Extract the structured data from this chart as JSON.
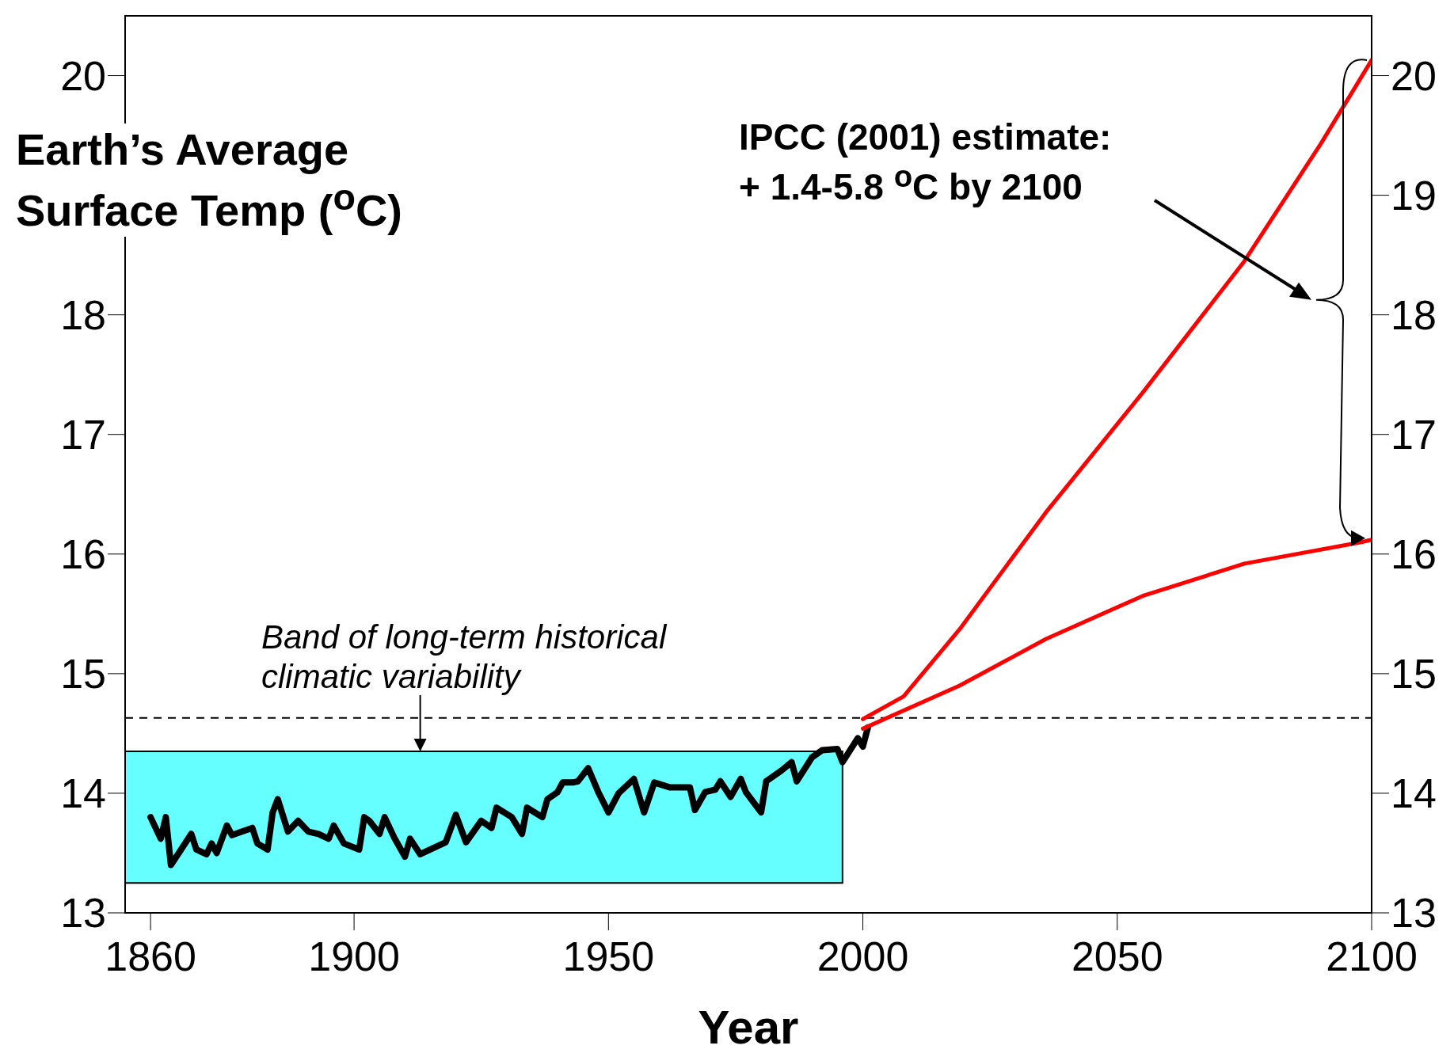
{
  "chart_data": {
    "type": "line",
    "xlabel": "Year",
    "ylabel": "Earth’s Average\nSurface Temp ($^{o}$C)",
    "xlim": [
      1855,
      2100
    ],
    "xticks": [
      1860,
      1900,
      1950,
      2000,
      2050,
      2100
    ],
    "ylim": [
      13,
      20.5
    ],
    "yticks": [
      13,
      14,
      15,
      16,
      17,
      18,
      20
    ],
    "y2lim": [
      13,
      20.5
    ],
    "y2ticks": [
      13,
      14,
      15,
      16,
      17,
      18,
      19,
      20
    ],
    "grid": false,
    "legend": false,
    "marker": "none",
    "line_style": "solid",
    "series": [
      {
        "color": "#000000",
        "x": [
          1860,
          1862,
          1863,
          1864,
          1866,
          1868,
          1869,
          1871,
          1872,
          1873,
          1875,
          1876,
          1878,
          1880,
          1881,
          1883,
          1884,
          1885,
          1887,
          1889,
          1891,
          1893,
          1895,
          1896,
          1898,
          1901,
          1902,
          1903,
          1905,
          1906,
          1908,
          1910,
          1911,
          1913,
          1918,
          1920,
          1922,
          1925,
          1927,
          1928,
          1931,
          1933,
          1934,
          1937,
          1938,
          1940,
          1941,
          1943,
          1944,
          1946,
          1948,
          1950,
          1952,
          1955,
          1957,
          1959,
          1962,
          1966,
          1967,
          1969,
          1971,
          1972,
          1974,
          1976,
          1977,
          1980,
          1981,
          1984,
          1986,
          1987,
          1990,
          1992,
          1995,
          1996,
          1999,
          2000,
          2001
        ],
        "values": [
          13.8,
          13.62,
          13.8,
          13.4,
          13.53,
          13.66,
          13.53,
          13.49,
          13.58,
          13.5,
          13.73,
          13.65,
          13.68,
          13.71,
          13.58,
          13.53,
          13.84,
          13.95,
          13.68,
          13.77,
          13.68,
          13.66,
          13.62,
          13.73,
          13.58,
          13.53,
          13.8,
          13.77,
          13.66,
          13.8,
          13.62,
          13.47,
          13.62,
          13.49,
          13.59,
          13.82,
          13.59,
          13.77,
          13.71,
          13.88,
          13.8,
          13.66,
          13.88,
          13.8,
          13.95,
          14.01,
          14.09,
          14.09,
          14.1,
          14.21,
          14.01,
          13.84,
          14.0,
          14.12,
          13.84,
          14.09,
          14.05,
          14.05,
          13.86,
          14.01,
          14.03,
          14.1,
          13.97,
          14.12,
          14.01,
          13.84,
          14.1,
          14.19,
          14.26,
          14.1,
          14.3,
          14.36,
          14.37,
          14.26,
          14.46,
          14.39,
          14.55
        ]
      },
      {
        "color": "#ff0000",
        "x": [
          2000,
          2008,
          2019,
          2036,
          2055,
          2075,
          2090,
          2100
        ],
        "values": [
          14.62,
          14.81,
          15.37,
          16.35,
          17.35,
          18.45,
          19.43,
          20.13
        ]
      },
      {
        "color": "#ff0000",
        "x": [
          2000,
          2019,
          2036,
          2055,
          2075,
          2098,
          2100
        ],
        "values": [
          14.54,
          14.9,
          15.29,
          15.65,
          15.92,
          16.1,
          16.12
        ]
      }
    ],
    "ref_lines": [
      {
        "axis": "y",
        "value": 14.63,
        "color": "#000000",
        "line_style": "dashed"
      }
    ],
    "bands": [
      {
        "axis": "y",
        "from": 13.25,
        "to": 14.35,
        "color": "#66ffff"
      }
    ],
    "annotations": [
      "Band of long-term historical\nclimatic variability",
      "IPCC (2001) estimate:\n+ 1.4-5.8 $^{o}$C by 2100"
    ]
  }
}
